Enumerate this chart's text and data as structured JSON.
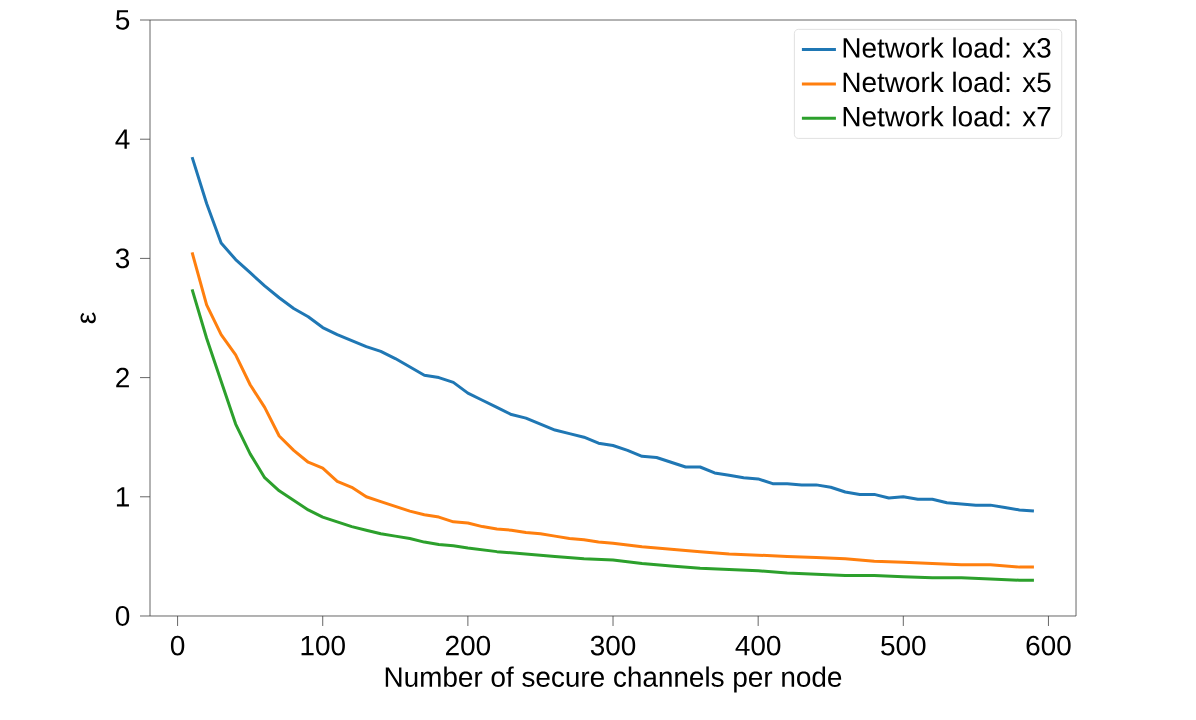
{
  "chart_data": {
    "type": "line",
    "xlabel": "Number of secure channels per node",
    "ylabel": "ε",
    "xlim": [
      -19,
      619
    ],
    "ylim": [
      0,
      5
    ],
    "xticks": [
      0,
      100,
      200,
      300,
      400,
      500,
      600
    ],
    "yticks": [
      0,
      1,
      2,
      3,
      4,
      5
    ],
    "legend": "top right",
    "series": [
      {
        "name": "Network load: x3",
        "color": "#1f77b4",
        "x": [
          10,
          20,
          30,
          40,
          50,
          60,
          70,
          80,
          90,
          100,
          110,
          120,
          130,
          140,
          150,
          160,
          170,
          180,
          190,
          200,
          210,
          220,
          230,
          240,
          250,
          260,
          270,
          280,
          290,
          300,
          310,
          320,
          330,
          340,
          350,
          360,
          370,
          380,
          390,
          400,
          410,
          420,
          430,
          440,
          450,
          460,
          470,
          480,
          490,
          500,
          510,
          520,
          530,
          540,
          550,
          560,
          570,
          580,
          590
        ],
        "values": [
          3.85,
          3.46,
          3.13,
          2.99,
          2.88,
          2.77,
          2.67,
          2.58,
          2.51,
          2.42,
          2.36,
          2.31,
          2.26,
          2.22,
          2.16,
          2.09,
          2.02,
          2.0,
          1.96,
          1.87,
          1.81,
          1.75,
          1.69,
          1.66,
          1.61,
          1.56,
          1.53,
          1.5,
          1.45,
          1.43,
          1.39,
          1.34,
          1.33,
          1.29,
          1.25,
          1.25,
          1.2,
          1.18,
          1.16,
          1.15,
          1.11,
          1.11,
          1.1,
          1.1,
          1.08,
          1.04,
          1.02,
          1.02,
          0.99,
          1.0,
          0.98,
          0.98,
          0.95,
          0.94,
          0.93,
          0.93,
          0.91,
          0.89,
          0.88
        ]
      },
      {
        "name": "Network load: x5",
        "color": "#ff7f0e",
        "x": [
          10,
          20,
          30,
          40,
          50,
          60,
          70,
          80,
          90,
          100,
          110,
          120,
          130,
          140,
          150,
          160,
          170,
          180,
          190,
          200,
          210,
          220,
          230,
          240,
          250,
          260,
          270,
          280,
          290,
          300,
          320,
          340,
          360,
          380,
          400,
          420,
          440,
          460,
          480,
          500,
          520,
          540,
          560,
          580,
          590
        ],
        "values": [
          3.05,
          2.61,
          2.36,
          2.19,
          1.94,
          1.75,
          1.51,
          1.39,
          1.29,
          1.24,
          1.13,
          1.08,
          1.0,
          0.96,
          0.92,
          0.88,
          0.85,
          0.83,
          0.79,
          0.78,
          0.75,
          0.73,
          0.72,
          0.7,
          0.69,
          0.67,
          0.65,
          0.64,
          0.62,
          0.61,
          0.58,
          0.56,
          0.54,
          0.52,
          0.51,
          0.5,
          0.49,
          0.48,
          0.46,
          0.45,
          0.44,
          0.43,
          0.43,
          0.41,
          0.41
        ]
      },
      {
        "name": "Network load: x7",
        "color": "#2ca02c",
        "x": [
          10,
          20,
          30,
          40,
          50,
          60,
          70,
          80,
          90,
          100,
          110,
          120,
          130,
          140,
          150,
          160,
          170,
          180,
          190,
          200,
          220,
          240,
          260,
          280,
          300,
          320,
          340,
          360,
          380,
          400,
          420,
          440,
          460,
          480,
          500,
          520,
          540,
          560,
          580,
          590
        ],
        "values": [
          2.74,
          2.33,
          1.97,
          1.61,
          1.36,
          1.16,
          1.05,
          0.97,
          0.89,
          0.83,
          0.79,
          0.75,
          0.72,
          0.69,
          0.67,
          0.65,
          0.62,
          0.6,
          0.59,
          0.57,
          0.54,
          0.52,
          0.5,
          0.48,
          0.47,
          0.44,
          0.42,
          0.4,
          0.39,
          0.38,
          0.36,
          0.35,
          0.34,
          0.34,
          0.33,
          0.32,
          0.32,
          0.31,
          0.3,
          0.3
        ]
      }
    ]
  }
}
